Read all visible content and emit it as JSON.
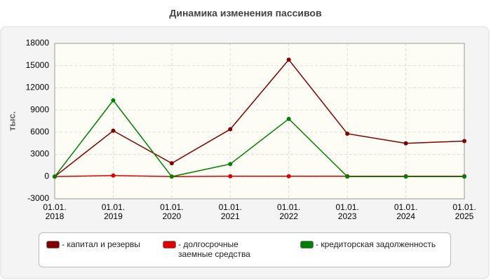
{
  "chart_data": {
    "type": "line",
    "title": "Динамика изменения пассивов",
    "y_label": "тыс.",
    "categories": [
      "01.01.\n2018",
      "01.01.\n2019",
      "01.01.\n2020",
      "01.01.\n2021",
      "01.01.\n2022",
      "01.01.\n2023",
      "01.01.\n2024",
      "01.01.\n2025"
    ],
    "series": [
      {
        "name": "- капитал и резервы",
        "color": "#800000",
        "values": [
          0,
          6200,
          1800,
          6400,
          15800,
          5800,
          4500,
          4800
        ]
      },
      {
        "name": "- долгосрочные заемные средства",
        "color": "#e00000",
        "values": [
          0,
          150,
          0,
          50,
          50,
          50,
          50,
          50
        ]
      },
      {
        "name": "- кредиторская задолженность",
        "color": "#008000",
        "values": [
          0,
          10300,
          0,
          1700,
          7800,
          0,
          0,
          0
        ]
      }
    ],
    "ylim": [
      -3000,
      18000
    ],
    "yticks": [
      -3000,
      0,
      3000,
      6000,
      9000,
      12000,
      15000,
      18000
    ],
    "grid": true
  }
}
